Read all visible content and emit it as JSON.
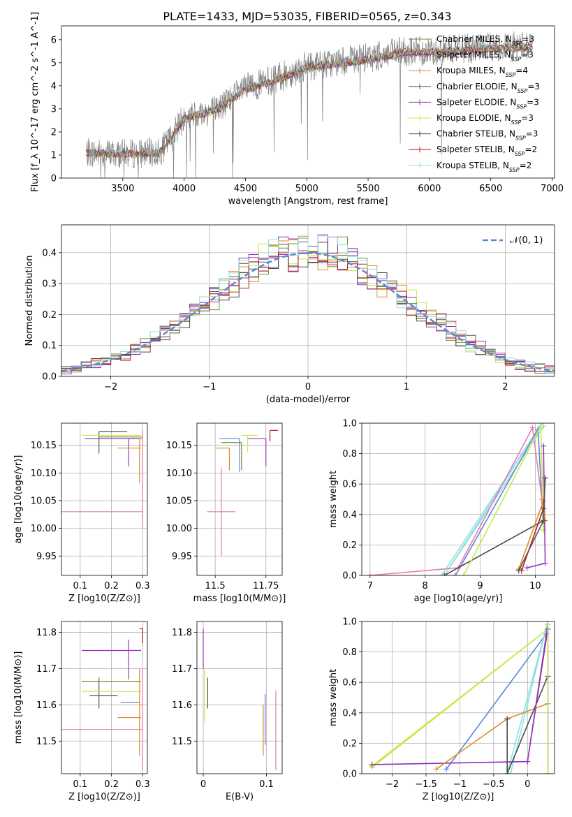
{
  "figure": {
    "title": "PLATE=1433, MJD=53035, FIBERID=0565, z=0.343"
  },
  "colors": {
    "chabrier_miles": "#6b8e3c",
    "salpeter_miles": "#8e2eb5",
    "kroupa_miles": "#e08a2a",
    "chabrier_elodie": "#555555",
    "salpeter_elodie": "#9a3ab8",
    "kroupa_elodie": "#c8e84a",
    "chabrier_stelib": "#4a4a4a",
    "salpeter_stelib": "#b21e1e",
    "kroupa_stelib": "#8fe0e0",
    "extra_blue": "#5b86d6",
    "extra_pink": "#e87ab4",
    "normal_curve": "#5b86d6",
    "data_spectrum": "#808080",
    "grid": "#b0b0b0"
  },
  "chart_data": [
    {
      "id": "spectrum",
      "type": "line",
      "xlabel": "wavelength [Angstrom, rest frame]",
      "ylabel": "Flux [f_λ 10^-17 erg cm^-2 s^-1 A^-1]",
      "xlim": [
        3000,
        7020
      ],
      "ylim": [
        0,
        6.6
      ],
      "xticks": [
        3500,
        4000,
        4500,
        5000,
        5500,
        6000,
        6500,
        7000
      ],
      "yticks": [
        0,
        1,
        2,
        3,
        4,
        5,
        6
      ],
      "grid": false,
      "legend_position": "upper-right",
      "legend": [
        {
          "label": "Chabrier MILES, N",
          "sub": "SSP",
          "suffix": "=3",
          "color_key": "chabrier_miles"
        },
        {
          "label": "Salpeter MILES, N",
          "sub": "SSP",
          "suffix": "=3",
          "color_key": "salpeter_miles"
        },
        {
          "label": "Kroupa MILES, N",
          "sub": "SSP",
          "suffix": "=4",
          "color_key": "kroupa_miles"
        },
        {
          "label": "Chabrier ELODIE, N",
          "sub": "SSP",
          "suffix": "=3",
          "color_key": "chabrier_elodie"
        },
        {
          "label": "Salpeter ELODIE, N",
          "sub": "SSP",
          "suffix": "=3",
          "color_key": "salpeter_elodie"
        },
        {
          "label": "Kroupa ELODIE, N",
          "sub": "SSP",
          "suffix": "=3",
          "color_key": "kroupa_elodie"
        },
        {
          "label": "Chabrier STELIB, N",
          "sub": "SSP",
          "suffix": "=3",
          "color_key": "chabrier_stelib"
        },
        {
          "label": "Salpeter STELIB, N",
          "sub": "SSP",
          "suffix": "=2",
          "color_key": "salpeter_stelib"
        },
        {
          "label": "Kroupa STELIB, N",
          "sub": "SSP",
          "suffix": "=2",
          "color_key": "kroupa_stelib"
        }
      ],
      "data_range": [
        3200,
        6840
      ],
      "continuum_points": [
        [
          3200,
          1.1
        ],
        [
          3500,
          1.05
        ],
        [
          3800,
          1.1
        ],
        [
          3900,
          1.8
        ],
        [
          4000,
          2.6
        ],
        [
          4200,
          2.9
        ],
        [
          4300,
          3.1
        ],
        [
          4500,
          3.9
        ],
        [
          4700,
          4.2
        ],
        [
          5000,
          4.85
        ],
        [
          5300,
          5.05
        ],
        [
          5500,
          5.2
        ],
        [
          5800,
          5.5
        ],
        [
          6000,
          5.5
        ],
        [
          6300,
          5.6
        ],
        [
          6600,
          5.7
        ],
        [
          6840,
          5.75
        ]
      ]
    },
    {
      "id": "residuals",
      "type": "step",
      "xlabel": "(data-model)/error",
      "ylabel": "Normed distribution",
      "xlim": [
        -2.5,
        2.5
      ],
      "ylim": [
        0,
        0.49
      ],
      "xticks": [
        -2,
        -1,
        0,
        1,
        2
      ],
      "yticks": [
        0.0,
        0.1,
        0.2,
        0.3,
        0.4
      ],
      "grid": true,
      "legend_position": "upper-right",
      "normal_label": "𝒩(0, 1)",
      "bin_edges": [
        -2.5,
        2.5,
        50
      ]
    },
    {
      "id": "age_vs_Z",
      "type": "errorbar",
      "xlabel": "Z [log10(Z/Z⊙)]",
      "ylabel": "age  [log10(age/yr)]",
      "xlim": [
        0.04,
        0.315
      ],
      "ylim": [
        9.915,
        10.19
      ],
      "xticks": [
        0.1,
        0.2,
        0.3
      ],
      "yticks": [
        9.95,
        10.0,
        10.05,
        10.1,
        10.15
      ],
      "grid": true,
      "points": [
        {
          "x": 0.16,
          "y": 10.175,
          "xerr": [
            0,
            0.09
          ],
          "yerr": [
            0.04,
            0
          ],
          "color_key": "chabrier_elodie"
        },
        {
          "x": 0.105,
          "y": 10.168,
          "xerr": [
            0,
            0.19
          ],
          "yerr": [
            0,
            0
          ],
          "color_key": "kroupa_elodie"
        },
        {
          "x": 0.16,
          "y": 10.165,
          "xerr": [
            0,
            0.14
          ],
          "yerr": [
            0,
            0
          ],
          "color_key": "chabrier_miles"
        },
        {
          "x": 0.115,
          "y": 10.162,
          "xerr": [
            0,
            0.17
          ],
          "yerr": [
            0,
            0
          ],
          "color_key": "salpeter_miles"
        },
        {
          "x": 0.255,
          "y": 10.162,
          "xerr": [
            0,
            0.04
          ],
          "yerr": [
            0.05,
            0
          ],
          "color_key": "salpeter_elodie"
        },
        {
          "x": 0.22,
          "y": 10.145,
          "xerr": [
            0,
            0.075
          ],
          "yerr": [
            0,
            0
          ],
          "color_key": "kroupa_miles"
        },
        {
          "x": 0.29,
          "y": 10.162,
          "xerr": [
            0,
            0.01
          ],
          "yerr": [
            0.08,
            0
          ],
          "color_key": "kroupa_miles"
        },
        {
          "x": 0.3,
          "y": 10.172,
          "xerr": [
            0,
            0
          ],
          "yerr": [
            0.17,
            0.005
          ],
          "color_key": "extra_pink"
        },
        {
          "x": 0.04,
          "y": 10.03,
          "xerr": [
            0,
            0.26
          ],
          "yerr": [
            0,
            0
          ],
          "color_key": "extra_pink"
        }
      ]
    },
    {
      "id": "age_vs_mass",
      "type": "errorbar",
      "xlabel": "mass [log10(M/M⊙)]",
      "ylabel": "",
      "xlim": [
        11.41,
        11.83
      ],
      "ylim": [
        9.915,
        10.19
      ],
      "xticks": [
        11.5,
        11.75
      ],
      "yticks": [
        9.95,
        10.0,
        10.05,
        10.1,
        10.15
      ],
      "grid": true,
      "points": [
        {
          "x": 11.77,
          "y": 10.177,
          "xerr": [
            0,
            0.04
          ],
          "yerr": [
            0.02,
            0
          ],
          "color_key": "salpeter_stelib"
        },
        {
          "x": 11.75,
          "y": 10.162,
          "xerr": [
            0.09,
            0
          ],
          "yerr": [
            0.05,
            0
          ],
          "color_key": "salpeter_elodie"
        },
        {
          "x": 11.62,
          "y": 10.162,
          "xerr": [
            0.1,
            0
          ],
          "yerr": [
            0.06,
            0
          ],
          "color_key": "extra_blue"
        },
        {
          "x": 11.66,
          "y": 10.168,
          "xerr": [
            0.03,
            0.05
          ],
          "yerr": [
            0.03,
            0
          ],
          "color_key": "kroupa_elodie"
        },
        {
          "x": 11.63,
          "y": 10.155,
          "xerr": [
            0.1,
            0
          ],
          "yerr": [
            0.05,
            0
          ],
          "color_key": "chabrier_miles"
        },
        {
          "x": 11.57,
          "y": 10.145,
          "xerr": [
            0.07,
            0
          ],
          "yerr": [
            0.04,
            0
          ],
          "color_key": "kroupa_miles"
        },
        {
          "x": 11.53,
          "y": 10.03,
          "xerr": [
            0.07,
            0.07
          ],
          "yerr": [
            0.08,
            0.08
          ],
          "color_key": "extra_pink"
        }
      ]
    },
    {
      "id": "massweight_vs_age",
      "type": "line",
      "xlabel": "age  [log10(age/yr)]",
      "ylabel": "mass weight",
      "xlim": [
        6.85,
        10.35
      ],
      "ylim": [
        0,
        1
      ],
      "xticks": [
        7,
        8,
        9,
        10
      ],
      "yticks": [
        0.0,
        0.2,
        0.4,
        0.6,
        0.8,
        1.0
      ],
      "grid": true,
      "lines": [
        {
          "color_key": "kroupa_stelib",
          "x": [
            8.3,
            10.12,
            8.35,
            10.15
          ],
          "y": [
            0.0,
            1.0,
            0.0,
            0.98
          ]
        },
        {
          "color_key": "extra_blue",
          "x": [
            8.55,
            10.05,
            10.15
          ],
          "y": [
            0.0,
            0.96,
            0.3
          ]
        },
        {
          "color_key": "extra_pink",
          "x": [
            7.0,
            8.6,
            9.95,
            10.12
          ],
          "y": [
            0.0,
            0.05,
            0.97,
            0.5
          ]
        },
        {
          "color_key": "chabrier_stelib",
          "x": [
            8.35,
            10.15
          ],
          "y": [
            0.0,
            0.36
          ]
        },
        {
          "color_key": "kroupa_elodie",
          "x": [
            8.7,
            10.1,
            10.15
          ],
          "y": [
            0.0,
            0.98,
            0.3
          ]
        },
        {
          "color_key": "salpeter_elodie",
          "x": [
            9.85,
            10.18,
            10.15
          ],
          "y": [
            0.05,
            0.08,
            0.85
          ]
        },
        {
          "color_key": "kroupa_miles",
          "x": [
            9.7,
            10.15,
            10.18
          ],
          "y": [
            0.04,
            0.49,
            0.36
          ]
        },
        {
          "color_key": "salpeter_stelib",
          "x": [
            9.75,
            10.15,
            10.18
          ],
          "y": [
            0.03,
            0.44,
            0.64
          ]
        },
        {
          "color_key": "chabrier_elodie",
          "x": [
            9.7,
            10.15,
            10.18
          ],
          "y": [
            0.03,
            0.36,
            0.64
          ]
        }
      ]
    },
    {
      "id": "mass_vs_Z",
      "type": "errorbar",
      "xlabel": "Z [log10(Z/Z⊙)]",
      "ylabel": "mass [log10(M/M⊙)]",
      "xlim": [
        0.04,
        0.315
      ],
      "ylim": [
        11.41,
        11.83
      ],
      "xticks": [
        0.1,
        0.2,
        0.3
      ],
      "yticks": [
        11.5,
        11.6,
        11.7,
        11.8
      ],
      "grid": true,
      "points": [
        {
          "x": 0.3,
          "y": 11.81,
          "xerr": [
            0.01,
            0
          ],
          "yerr": [
            0.04,
            0
          ],
          "color_key": "salpeter_stelib"
        },
        {
          "x": 0.105,
          "y": 11.75,
          "xerr": [
            0,
            0.19
          ],
          "yerr": [
            0,
            0
          ],
          "color_key": "salpeter_miles"
        },
        {
          "x": 0.255,
          "y": 11.75,
          "xerr": [
            0,
            0
          ],
          "yerr": [
            0.08,
            0.03
          ],
          "color_key": "salpeter_elodie"
        },
        {
          "x": 0.105,
          "y": 11.665,
          "xerr": [
            0,
            0.19
          ],
          "yerr": [
            0,
            0
          ],
          "color_key": "chabrier_miles"
        },
        {
          "x": 0.16,
          "y": 11.625,
          "xerr": [
            0.03,
            0.06
          ],
          "yerr": [
            0.035,
            0.05
          ],
          "color_key": "chabrier_elodie"
        },
        {
          "x": 0.105,
          "y": 11.637,
          "xerr": [
            0,
            0.19
          ],
          "yerr": [
            0,
            0
          ],
          "color_key": "kroupa_elodie"
        },
        {
          "x": 0.23,
          "y": 11.607,
          "xerr": [
            0,
            0.06
          ],
          "yerr": [
            0,
            0
          ],
          "color_key": "extra_blue"
        },
        {
          "x": 0.22,
          "y": 11.565,
          "xerr": [
            0,
            0.075
          ],
          "yerr": [
            0,
            0
          ],
          "color_key": "kroupa_miles"
        },
        {
          "x": 0.04,
          "y": 11.532,
          "xerr": [
            0,
            0.26
          ],
          "yerr": [
            0,
            0
          ],
          "color_key": "extra_pink"
        },
        {
          "x": 0.29,
          "y": 11.6,
          "xerr": [
            0,
            0.01
          ],
          "yerr": [
            0.14,
            0.1
          ],
          "color_key": "kroupa_miles"
        },
        {
          "x": 0.3,
          "y": 11.6,
          "xerr": [
            0,
            0
          ],
          "yerr": [
            0.18,
            0.1
          ],
          "color_key": "extra_pink"
        }
      ]
    },
    {
      "id": "mass_vs_EBV",
      "type": "errorbar",
      "xlabel": "E(B-V)",
      "ylabel": "",
      "xlim": [
        -0.01,
        0.125
      ],
      "ylim": [
        11.41,
        11.83
      ],
      "xticks": [
        0.0,
        0.1
      ],
      "yticks": [
        11.5,
        11.6,
        11.7,
        11.8
      ],
      "grid": true,
      "points": [
        {
          "x": 0.0,
          "y": 11.75,
          "xerr": [
            0,
            0
          ],
          "yerr": [
            0.05,
            0.06
          ],
          "color_key": "salpeter_elodie"
        },
        {
          "x": 0.002,
          "y": 11.65,
          "xerr": [
            0,
            0
          ],
          "yerr": [
            0.1,
            0.05
          ],
          "color_key": "kroupa_elodie"
        },
        {
          "x": 0.007,
          "y": 11.625,
          "xerr": [
            0,
            0
          ],
          "yerr": [
            0.035,
            0.05
          ],
          "color_key": "chabrier_elodie"
        },
        {
          "x": 0.095,
          "y": 11.56,
          "xerr": [
            0,
            0
          ],
          "yerr": [
            0.1,
            0.04
          ],
          "color_key": "kroupa_miles"
        },
        {
          "x": 0.098,
          "y": 11.56,
          "xerr": [
            0,
            0
          ],
          "yerr": [
            0.07,
            0.07
          ],
          "color_key": "extra_blue"
        },
        {
          "x": 0.115,
          "y": 11.53,
          "xerr": [
            0,
            0
          ],
          "yerr": [
            0.11,
            0.11
          ],
          "color_key": "extra_pink"
        }
      ]
    },
    {
      "id": "massweight_vs_Z",
      "type": "line",
      "xlabel": "Z [log10(Z/Z⊙)]",
      "ylabel": "mass weight",
      "xlim": [
        -2.45,
        0.4
      ],
      "ylim": [
        0,
        1
      ],
      "xticks": [
        -2.0,
        -1.5,
        -1.0,
        -0.5,
        0.0
      ],
      "yticks": [
        0.0,
        0.2,
        0.4,
        0.6,
        0.8,
        1.0
      ],
      "grid": true,
      "lines": [
        {
          "color_key": "kroupa_elodie",
          "x": [
            -2.3,
            0.3,
            -2.3
          ],
          "y": [
            0.04,
            0.95,
            0.05
          ]
        },
        {
          "color_key": "extra_blue",
          "x": [
            -1.2,
            0.28
          ],
          "y": [
            0.03,
            0.92
          ]
        },
        {
          "color_key": "kroupa_stelib",
          "x": [
            -0.3,
            0.3,
            -0.25
          ],
          "y": [
            0.0,
            1.0,
            0.0
          ]
        },
        {
          "color_key": "salpeter_miles",
          "x": [
            -2.3,
            0.0,
            0.3,
            0.3
          ],
          "y": [
            0.06,
            0.08,
            0.95,
            0.0
          ]
        },
        {
          "color_key": "kroupa_miles",
          "x": [
            -1.35,
            -0.3,
            0.3
          ],
          "y": [
            0.03,
            0.36,
            0.46
          ]
        },
        {
          "color_key": "chabrier_stelib",
          "x": [
            -0.3,
            -0.3,
            0.3
          ],
          "y": [
            0.36,
            0.0,
            0.64
          ]
        },
        {
          "color_key": "salpeter_elodie",
          "x": [
            0.0,
            0.3,
            0.3
          ],
          "y": [
            0.08,
            0.98,
            0.0
          ]
        },
        {
          "color_key": "kroupa_elodie",
          "x": [
            0.3,
            0.3
          ],
          "y": [
            0.0,
            0.98
          ]
        }
      ]
    }
  ]
}
